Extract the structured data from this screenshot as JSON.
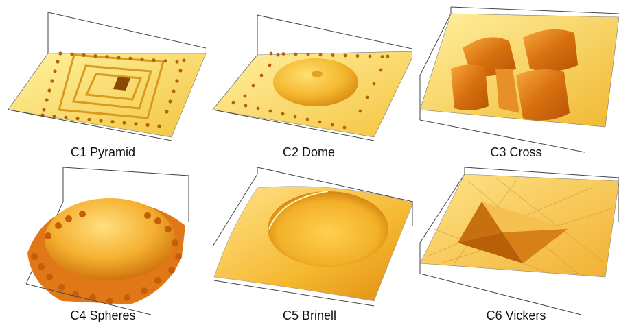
{
  "panels": [
    {
      "id": "C1",
      "label": "C1 Pyramid"
    },
    {
      "id": "C2",
      "label": "C2 Dome"
    },
    {
      "id": "C3",
      "label": "C3 Cross"
    },
    {
      "id": "C4",
      "label": "C4 Spheres"
    },
    {
      "id": "C5",
      "label": "C5 Brinell"
    },
    {
      "id": "C6",
      "label": "C6 Vickers"
    }
  ],
  "colors": {
    "surface_light": "#ffe680",
    "surface_mid": "#f5b830",
    "surface_dark": "#c86a08",
    "feature_dark": "#a04a05",
    "frame_line": "#444444"
  }
}
